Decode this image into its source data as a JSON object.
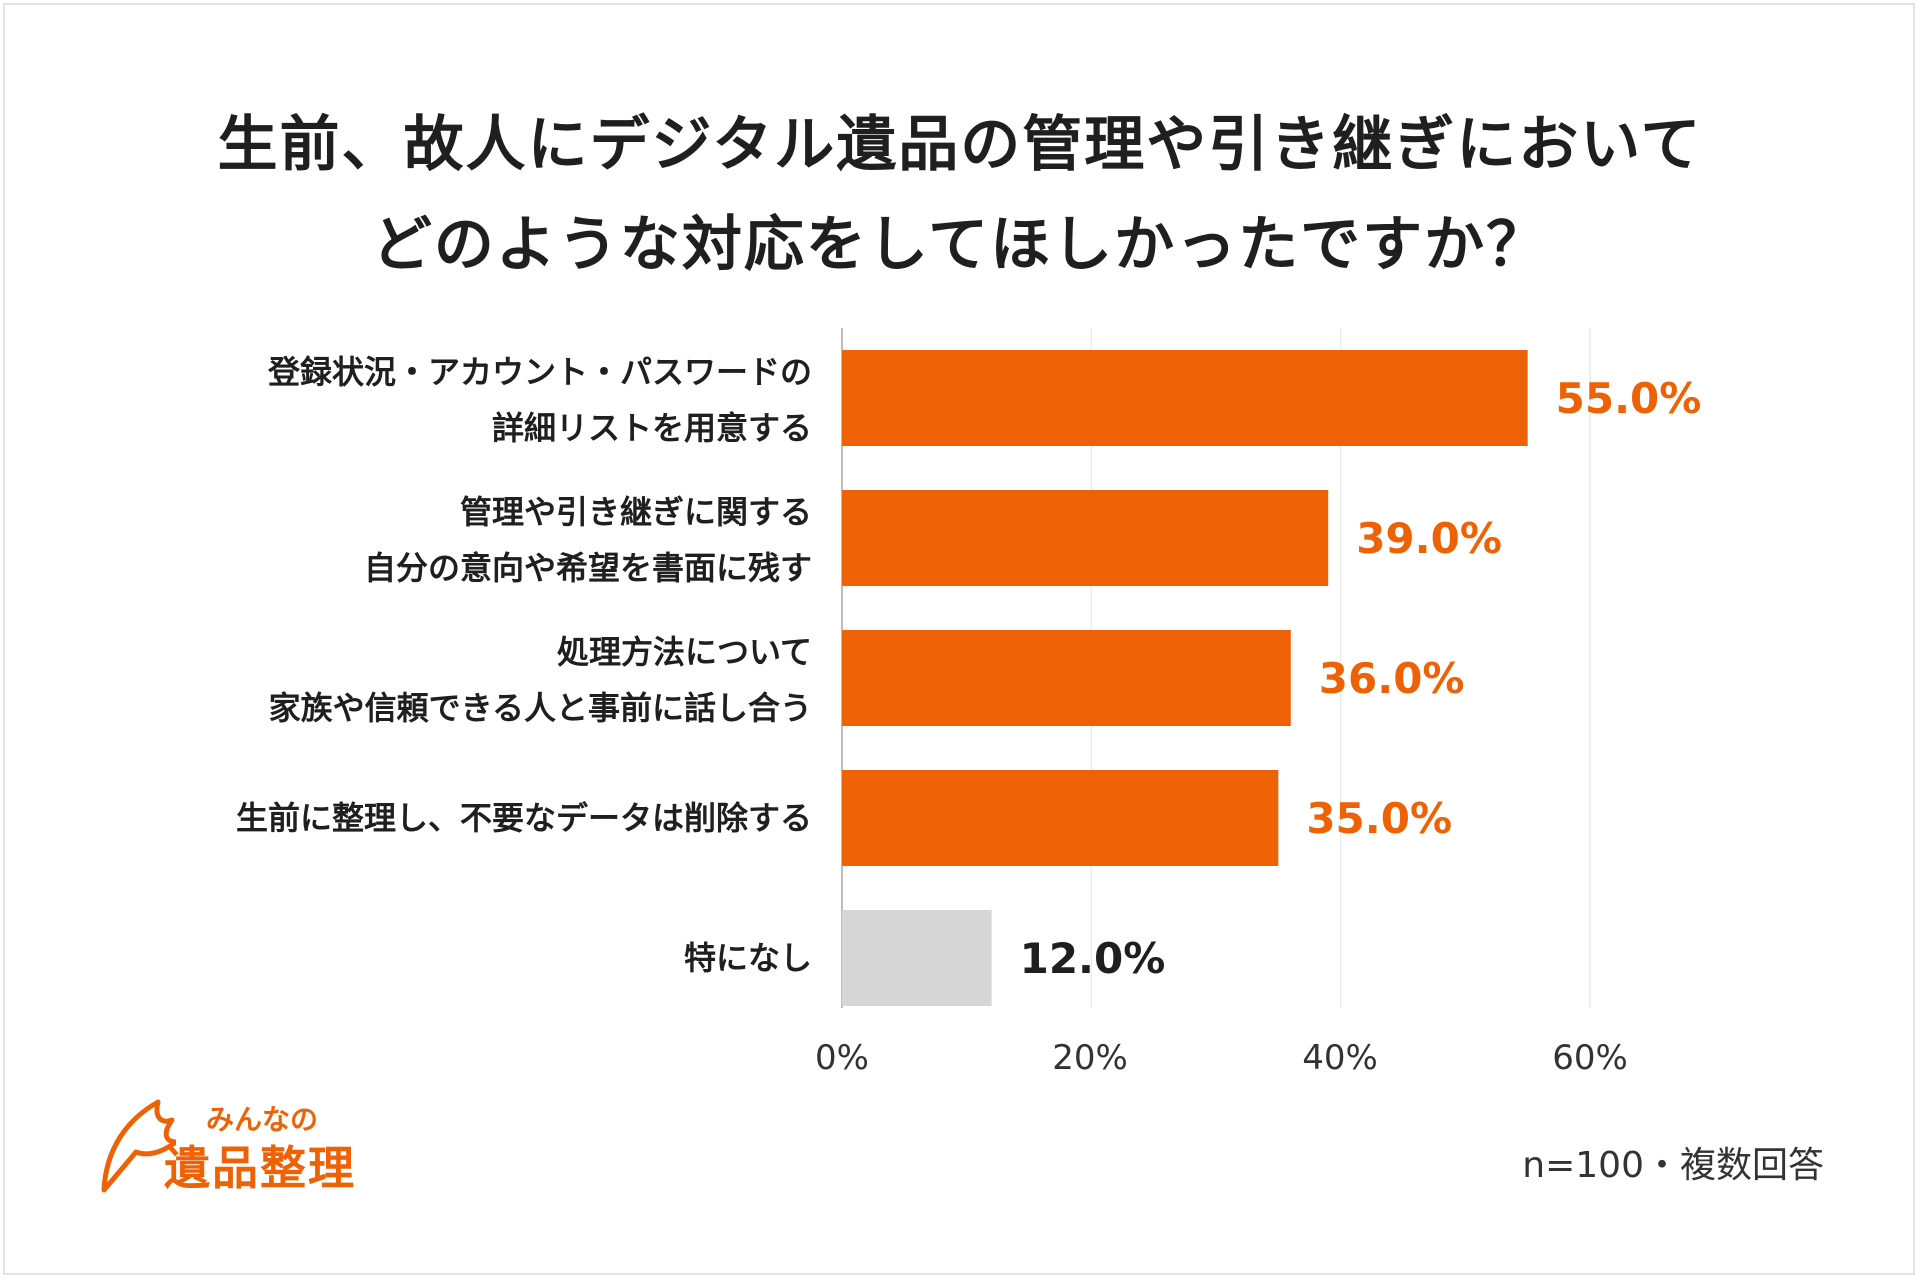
{
  "chart_data": {
    "type": "bar",
    "orientation": "horizontal",
    "title_lines": [
      "生前、故人にデジタル遺品の管理や引き継ぎにおいて",
      "どのような対応をしてほしかったですか？"
    ],
    "categories": [
      [
        "登録状況・アカウント・パスワードの",
        "詳細リストを用意する"
      ],
      [
        "管理や引き継ぎに関する",
        "自分の意向や希望を書面に残す"
      ],
      [
        "処理方法について",
        "家族や信頼できる人と事前に話し合う"
      ],
      [
        "生前に整理し、不要なデータは削除する"
      ],
      [
        "特になし"
      ]
    ],
    "values": [
      55.0,
      39.0,
      36.0,
      35.0,
      12.0
    ],
    "value_labels": [
      "55.0%",
      "39.0%",
      "36.0%",
      "35.0%",
      "12.0%"
    ],
    "x_ticks": [
      "0%",
      "20%",
      "40%",
      "60%"
    ],
    "xlim": [
      0,
      60
    ],
    "grid": true,
    "legend": "none",
    "bar_colors": [
      "#EE6205",
      "#EE6205",
      "#EE6205",
      "#EE6205",
      "#D6D6D6"
    ],
    "label_colors": [
      "#EE6205",
      "#EE6205",
      "#EE6205",
      "#EE6205",
      "#1f1f1f"
    ]
  },
  "footnote": "n=100・複数回答",
  "logo": {
    "line1": "みんなの",
    "line2": "遺品整理",
    "color": "#EE6205"
  }
}
